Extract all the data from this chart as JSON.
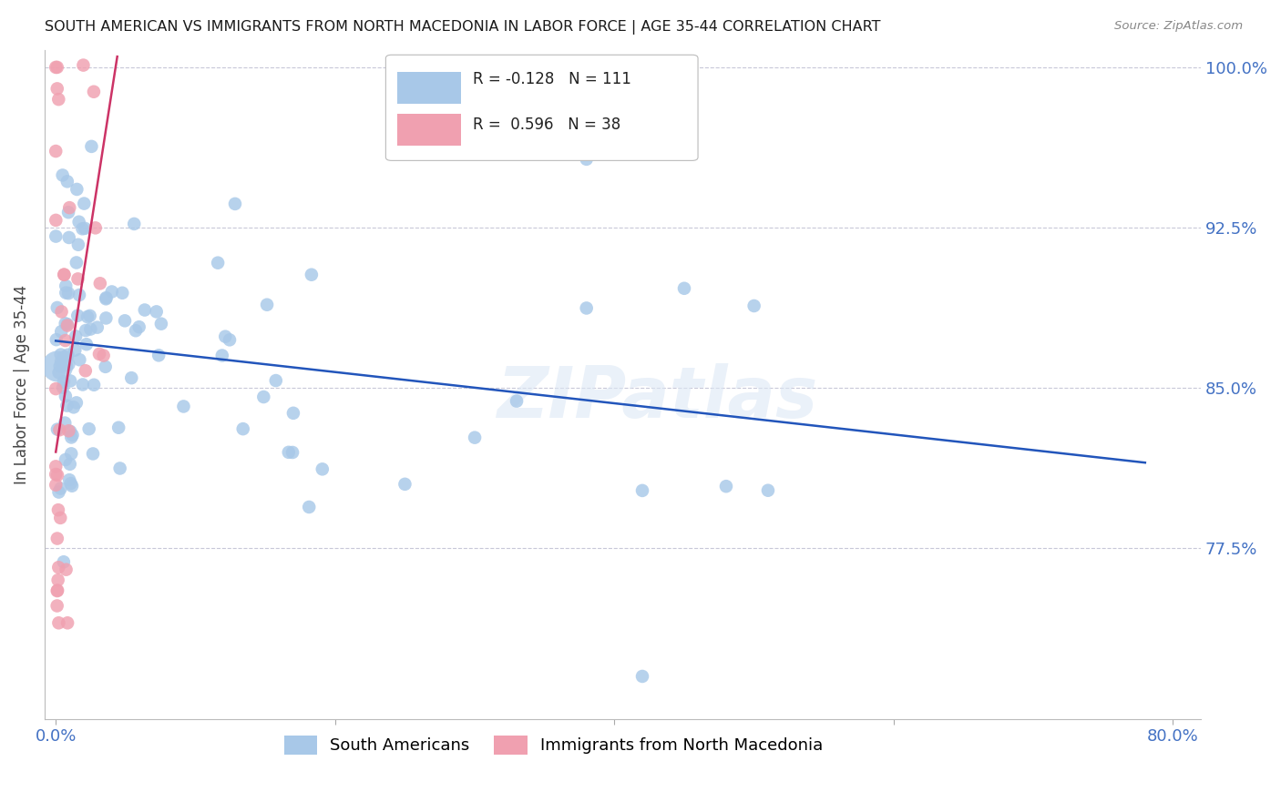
{
  "title": "SOUTH AMERICAN VS IMMIGRANTS FROM NORTH MACEDONIA IN LABOR FORCE | AGE 35-44 CORRELATION CHART",
  "source": "Source: ZipAtlas.com",
  "ylabel": "In Labor Force | Age 35-44",
  "xlim": [
    -0.008,
    0.82
  ],
  "ylim": [
    0.695,
    1.008
  ],
  "yticks": [
    0.775,
    0.85,
    0.925,
    1.0
  ],
  "yticklabels": [
    "77.5%",
    "85.0%",
    "92.5%",
    "100.0%"
  ],
  "xticks": [
    0.0,
    0.2,
    0.4,
    0.6,
    0.8
  ],
  "xticklabels": [
    "0.0%",
    "",
    "",
    "",
    "80.0%"
  ],
  "blue_color": "#a8c8e8",
  "pink_color": "#f0a0b0",
  "blue_line_color": "#2255bb",
  "pink_line_color": "#cc3366",
  "watermark": "ZIPatlas",
  "legend_blue_label": "South Americans",
  "legend_pink_label": "Immigrants from North Macedonia",
  "R_blue": -0.128,
  "N_blue": 111,
  "R_pink": 0.596,
  "N_pink": 38,
  "blue_line_x": [
    0.0,
    0.78
  ],
  "blue_line_y": [
    0.872,
    0.815
  ],
  "pink_line_x": [
    0.0,
    0.044
  ],
  "pink_line_y": [
    0.82,
    1.005
  ]
}
